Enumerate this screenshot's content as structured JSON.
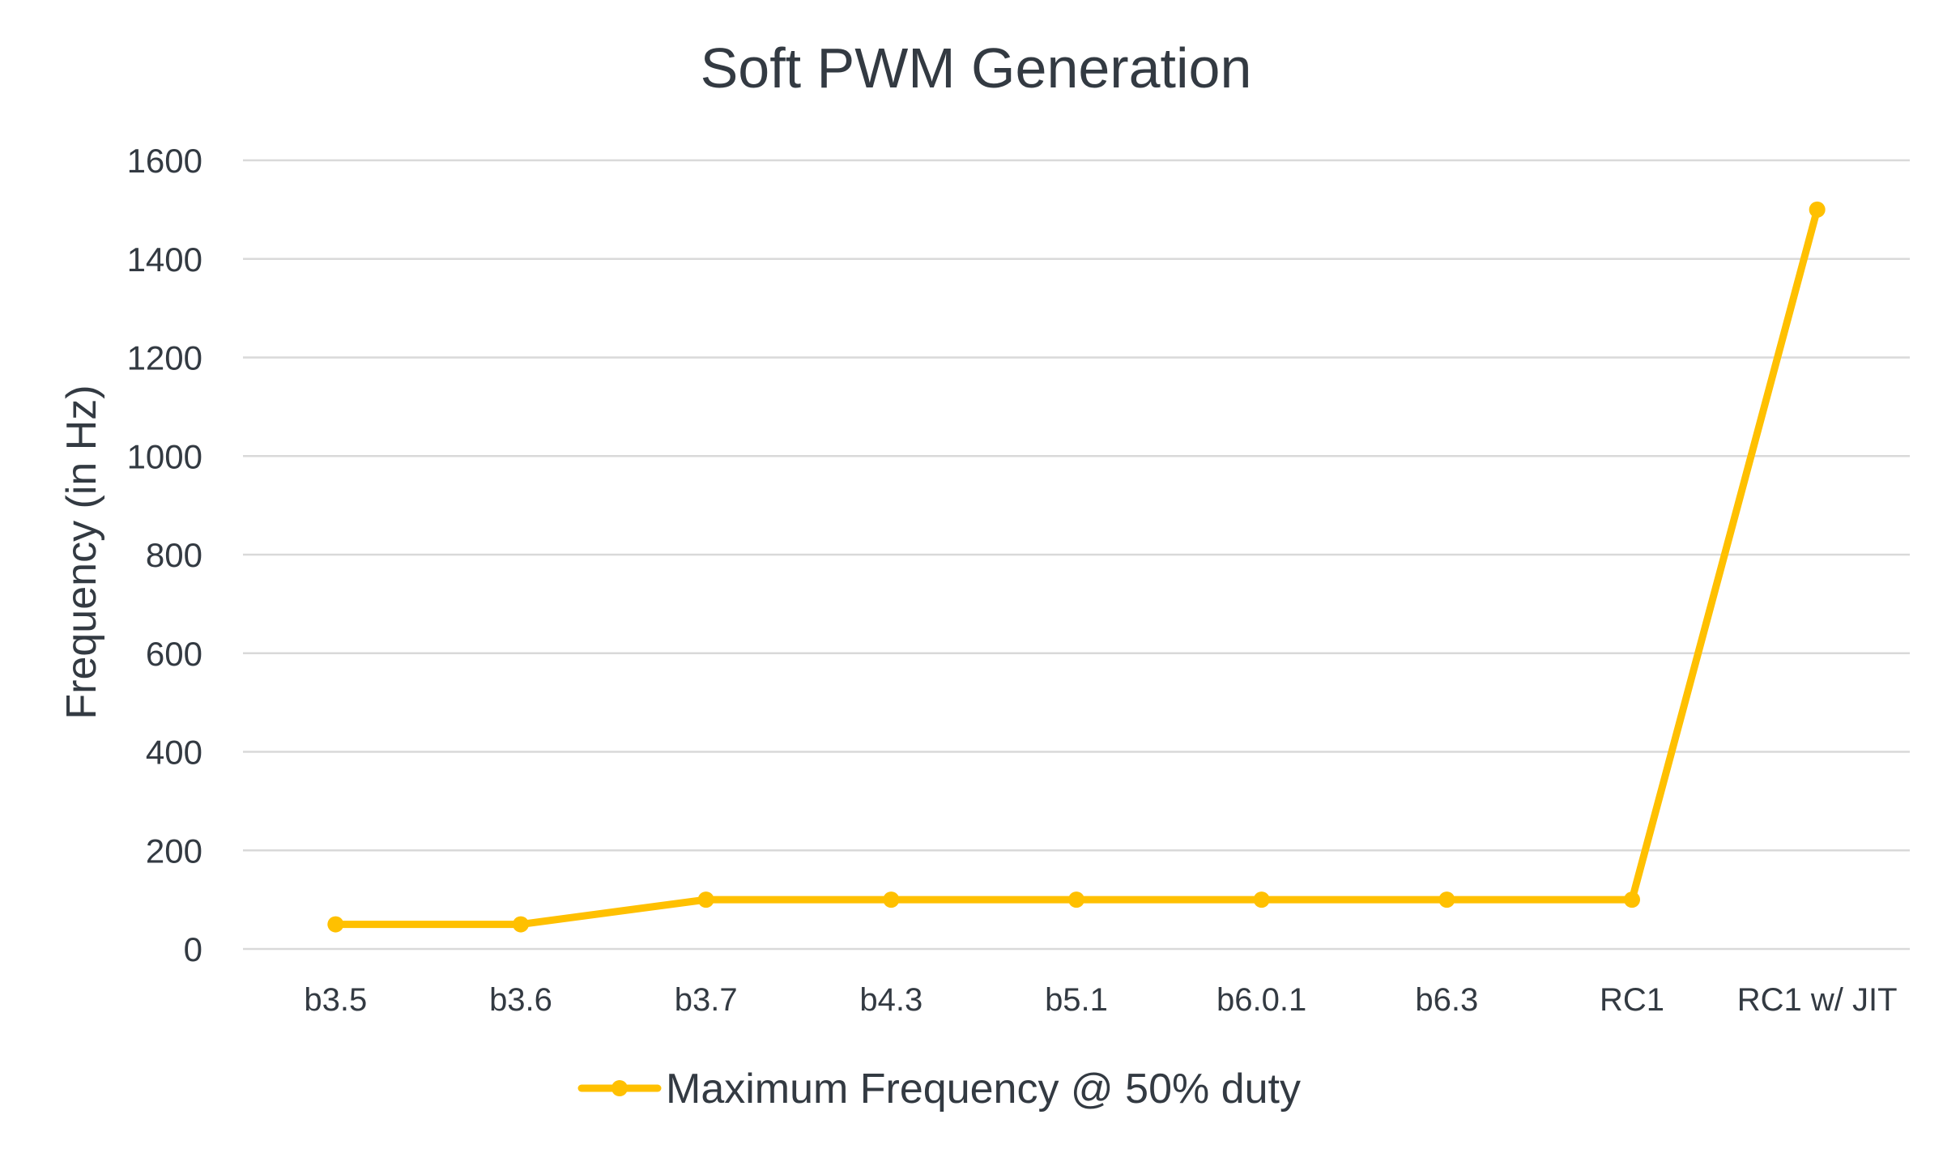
{
  "chart_data": {
    "type": "line",
    "title": "Soft PWM Generation",
    "xlabel": "",
    "ylabel": "Frequency (in Hz)",
    "categories": [
      "b3.5",
      "b3.6",
      "b3.7",
      "b4.3",
      "b5.1",
      "b6.0.1",
      "b6.3",
      "RC1",
      "RC1 w/ JIT"
    ],
    "ylim": [
      0,
      1600
    ],
    "yticks": [
      "0",
      "200",
      "400",
      "600",
      "800",
      "1000",
      "1200",
      "1400",
      "1600"
    ],
    "series": [
      {
        "name": "Maximum Frequency @ 50% duty",
        "values": [
          50,
          50,
          100,
          100,
          100,
          100,
          100,
          100,
          1500
        ],
        "color": "#FFC000"
      }
    ],
    "grid": true,
    "legend_position": "bottom",
    "gridline_color": "#D9D9D9",
    "text_color": "#333A42"
  }
}
